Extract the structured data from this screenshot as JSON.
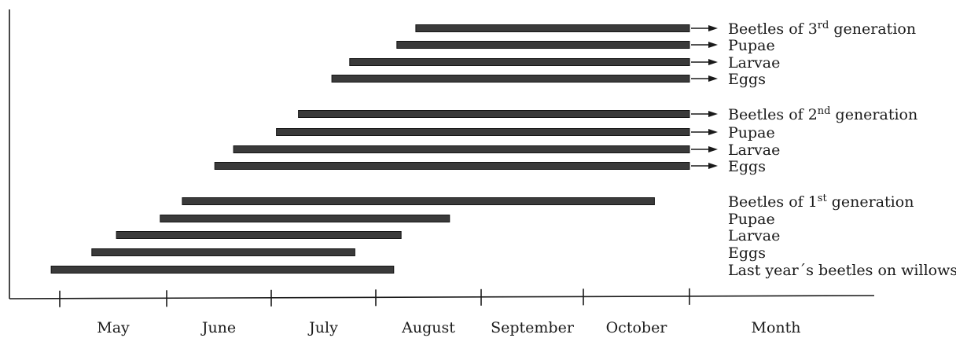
{
  "chart_data": {
    "type": "bar",
    "orientation": "horizontal-timeline",
    "xlabel": "Month",
    "months": [
      "May",
      "June",
      "July",
      "August",
      "September",
      "October"
    ],
    "x_unit": "month index (0 = start of May)",
    "xlim": [
      0,
      6
    ],
    "grid": false,
    "legend": "none",
    "bar_color": "#3a3a3a",
    "series": [
      {
        "name": "Beetles of 3rd generation",
        "label_parts": [
          "Beetles of 3",
          "rd",
          " generation"
        ],
        "start": 3.38,
        "end": 6.0,
        "continues": true
      },
      {
        "name": "Pupae",
        "label_parts": [
          "Pupae",
          "",
          ""
        ],
        "start": 3.2,
        "end": 6.0,
        "continues": true
      },
      {
        "name": "Larvae",
        "label_parts": [
          "Larvae",
          "",
          ""
        ],
        "start": 2.75,
        "end": 6.0,
        "continues": true
      },
      {
        "name": "Eggs",
        "label_parts": [
          "Eggs",
          "",
          ""
        ],
        "start": 2.58,
        "end": 6.0,
        "continues": true
      },
      {
        "name": "Beetles of 2nd generation",
        "label_parts": [
          "Beetles of 2",
          "nd",
          " generation"
        ],
        "start": 2.26,
        "end": 6.0,
        "continues": true
      },
      {
        "name": "Pupae",
        "label_parts": [
          "Pupae",
          "",
          ""
        ],
        "start": 2.05,
        "end": 6.0,
        "continues": true
      },
      {
        "name": "Larvae",
        "label_parts": [
          "Larvae",
          "",
          ""
        ],
        "start": 1.64,
        "end": 6.0,
        "continues": true
      },
      {
        "name": "Eggs",
        "label_parts": [
          "Eggs",
          "",
          ""
        ],
        "start": 1.46,
        "end": 6.0,
        "continues": true
      },
      {
        "name": "Beetles of 1st generation",
        "label_parts": [
          "Beetles of 1",
          "st",
          " generation"
        ],
        "start": 1.15,
        "end": 5.67,
        "continues": false
      },
      {
        "name": "Pupae",
        "label_parts": [
          "Pupae",
          "",
          ""
        ],
        "start": 0.94,
        "end": 3.7,
        "continues": false
      },
      {
        "name": "Larvae",
        "label_parts": [
          "Larvae",
          "",
          ""
        ],
        "start": 0.53,
        "end": 3.24,
        "continues": false
      },
      {
        "name": "Eggs",
        "label_parts": [
          "Eggs",
          "",
          ""
        ],
        "start": 0.3,
        "end": 2.8,
        "continues": false
      },
      {
        "name": "Last year´s beetles on willows",
        "label_parts": [
          "Last year´s beetles on willows",
          "",
          ""
        ],
        "start": -0.08,
        "end": 3.17,
        "continues": false
      }
    ]
  }
}
